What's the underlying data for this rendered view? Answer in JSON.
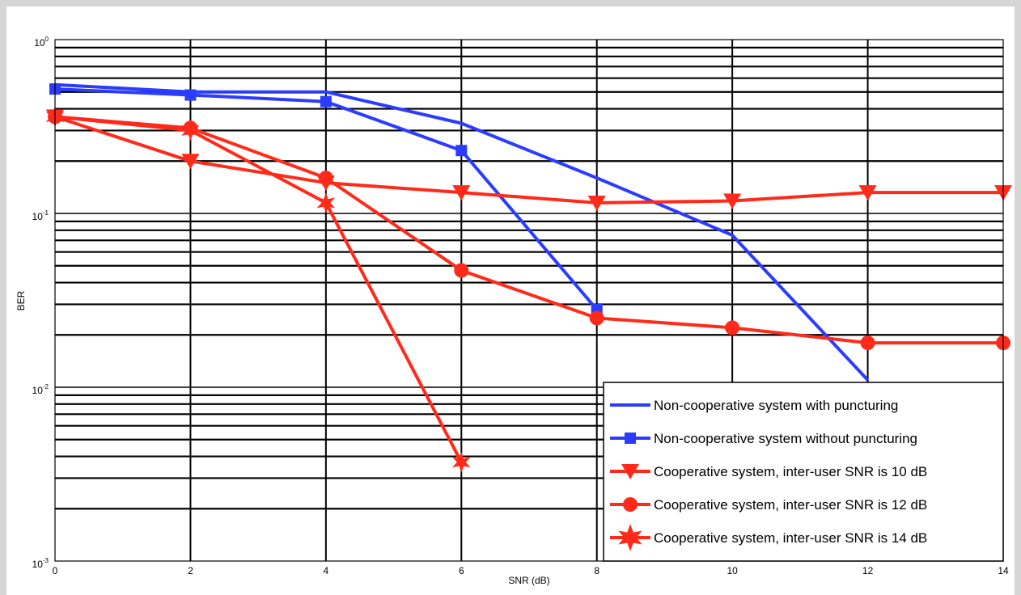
{
  "chart_data": {
    "type": "line",
    "title": "",
    "xlabel": "SNR (dB)",
    "ylabel": "BER",
    "xlim": [
      0,
      14
    ],
    "ylim": [
      0.001,
      1
    ],
    "yscale": "log",
    "grid": true,
    "legend_position": "bottom-right",
    "x_ticks": [
      "0",
      "2",
      "4",
      "6",
      "8",
      "10",
      "12",
      "14"
    ],
    "y_ticks": [
      {
        "base": "10",
        "exp": "0"
      },
      {
        "base": "10",
        "exp": "-1"
      },
      {
        "base": "10",
        "exp": "-2"
      },
      {
        "base": "10",
        "exp": "-3"
      }
    ],
    "series": [
      {
        "name": "Non-cooperative system with puncturing",
        "color": "#2b3cff",
        "marker": "none",
        "x": [
          0,
          2,
          4,
          6,
          8,
          10,
          12
        ],
        "y": [
          0.55,
          0.5,
          0.5,
          0.33,
          0.16,
          0.075,
          0.011
        ]
      },
      {
        "name": "Non-cooperative system without puncturing",
        "color": "#2b3cff",
        "marker": "square",
        "x": [
          0,
          2,
          4,
          6,
          8
        ],
        "y": [
          0.52,
          0.48,
          0.44,
          0.23,
          0.028
        ]
      },
      {
        "name": "Cooperative system, inter-user SNR is 10 dB",
        "color": "#ff2a1a",
        "marker": "triangle-down",
        "x": [
          0,
          2,
          4,
          6,
          8,
          10,
          12,
          14
        ],
        "y": [
          0.36,
          0.2,
          0.15,
          0.132,
          0.115,
          0.118,
          0.132,
          0.132
        ]
      },
      {
        "name": "Cooperative system, inter-user SNR is 12 dB",
        "color": "#ff2a1a",
        "marker": "circle",
        "x": [
          0,
          2,
          4,
          6,
          8,
          10,
          12,
          14
        ],
        "y": [
          0.36,
          0.31,
          0.16,
          0.047,
          0.025,
          0.022,
          0.018,
          0.018
        ]
      },
      {
        "name": "Cooperative system, inter-user SNR is 14 dB",
        "color": "#ff2a1a",
        "marker": "hexagram",
        "x": [
          0,
          2,
          4,
          6
        ],
        "y": [
          0.36,
          0.3,
          0.115,
          0.0037
        ]
      }
    ]
  }
}
